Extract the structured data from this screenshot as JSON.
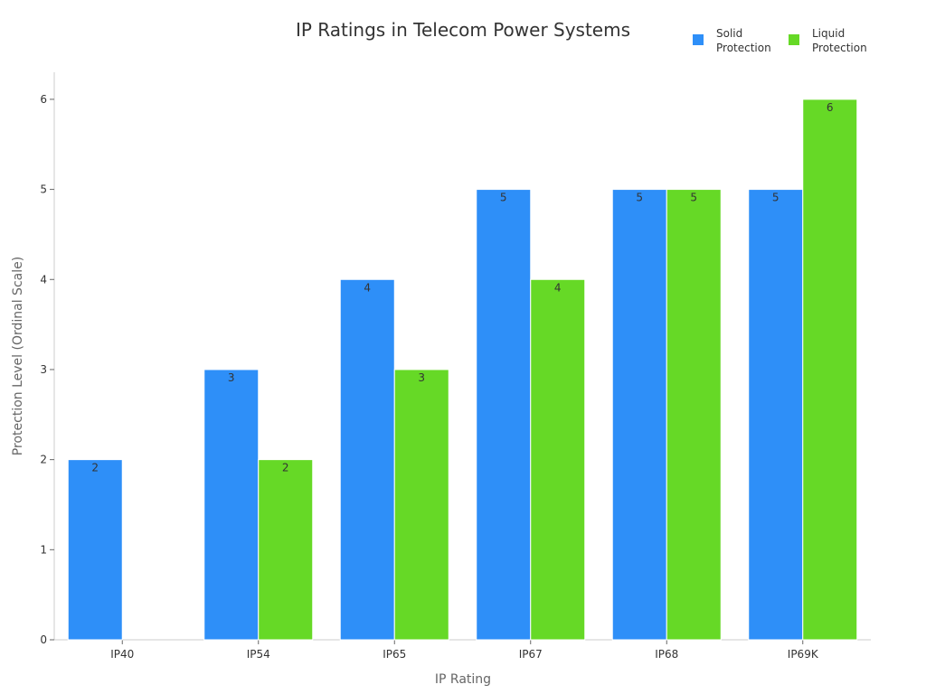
{
  "chart_data": {
    "type": "bar",
    "title": "IP Ratings in Telecom Power Systems",
    "xlabel": "IP Rating",
    "ylabel": "Protection Level (Ordinal Scale)",
    "categories": [
      "IP40",
      "IP54",
      "IP65",
      "IP67",
      "IP68",
      "IP69K"
    ],
    "series": [
      {
        "name": "Solid Protection",
        "legend_lines": [
          "Solid",
          "Protection"
        ],
        "color": "#2e8ff8",
        "values": [
          2,
          3,
          4,
          5,
          5,
          5
        ]
      },
      {
        "name": "Liquid Protection",
        "legend_lines": [
          "Liquid",
          "Protection"
        ],
        "color": "#66d926",
        "values": [
          0,
          2,
          3,
          4,
          5,
          6
        ]
      }
    ],
    "ylim": [
      0,
      6.3
    ],
    "yticks": [
      0,
      1,
      2,
      3,
      4,
      5,
      6
    ],
    "grid": false,
    "legend_position": "top-right"
  }
}
